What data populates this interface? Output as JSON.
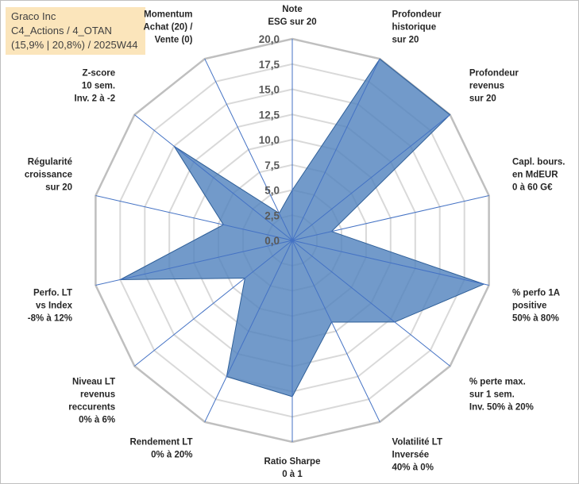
{
  "title_box": {
    "line1": "Graco Inc",
    "line2": "C4_Actions / 4_OTAN",
    "line3": "(15,9% | 20,8%) / 2025W44"
  },
  "chart_data": {
    "type": "radar",
    "rmin": 0,
    "rmax": 20,
    "ticks": [
      "0,0",
      "2,5",
      "5,0",
      "7,5",
      "10,0",
      "12,5",
      "15,0",
      "17,5",
      "20,0"
    ],
    "categories": [
      [
        "Note",
        "ESG sur 20"
      ],
      [
        "Profondeur",
        "historique",
        "sur 20"
      ],
      [
        "Profondeur",
        "revenus",
        "sur 20"
      ],
      [
        "Capl. bours.",
        "en MdEUR",
        "0 à 60 G€"
      ],
      [
        "% perfo 1A",
        "positive",
        "50% à 80%"
      ],
      [
        "% perte max.",
        "sur 1 sem.",
        "Inv. 50% à 20%"
      ],
      [
        "Volatilité LT",
        "Inversée",
        "40% à 0%"
      ],
      [
        "Ratio Sharpe",
        "0 à 1"
      ],
      [
        "Rendement LT",
        "0% à 20%"
      ],
      [
        "Niveau LT",
        "revenus",
        "reccurents",
        "0% à 6%"
      ],
      [
        "Perfo. LT",
        "vs Index",
        "-8% à 12%"
      ],
      [
        "Régularité",
        "croissance",
        "sur 20"
      ],
      [
        "Z-score",
        "10 sem.",
        "Inv. 2 à -2"
      ],
      [
        "Momentum",
        "Achat (20) /",
        "Vente (0)"
      ]
    ],
    "series": [
      {
        "name": "Graco Inc",
        "values": [
          5,
          20,
          20,
          4,
          19.5,
          13,
          9,
          15.5,
          15,
          6,
          17.5,
          7,
          15,
          3
        ],
        "fill": "#4f81bd",
        "stroke": "#2f5f98"
      }
    ],
    "grid_color": "#d9d9d9",
    "outer_ring_color": "#bfbfbf",
    "spoke_color": "#4472c4"
  }
}
